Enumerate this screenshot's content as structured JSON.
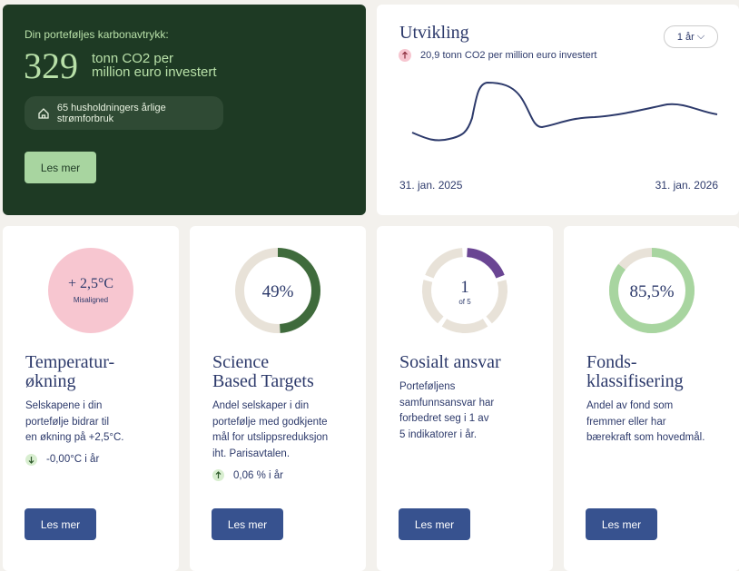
{
  "carbon": {
    "heading": "Din porteføljes karbonavtrykk:",
    "value": 329,
    "unit_lines": [
      "tonn CO2 per",
      "million euro investert"
    ],
    "households": "65 husholdningers årlige strømforbruk",
    "button": "Les mer"
  },
  "trend": {
    "title": "Utvikling",
    "period": "1 år",
    "change": "20,9 tonn CO2 per million euro investert",
    "start_date": "31. jan. 2025",
    "end_date": "31. jan. 2026"
  },
  "cards": [
    {
      "ring": {
        "label": "+ 2,5°C",
        "sub": "Misaligned"
      },
      "title_lines": [
        "Temperatur-",
        "økning"
      ],
      "description_lines": [
        "Selskapene i din",
        "portefølje bidrar til",
        "en økning på +2,5°C."
      ],
      "change": "-0,00°C i år",
      "change_direction": "down",
      "button": "Les mer"
    },
    {
      "ring": {
        "value": 49,
        "label": "49%",
        "color": "#3f6b3c"
      },
      "title_lines": [
        "Science",
        "Based Targets"
      ],
      "description_lines": [
        "Andel selskaper i din",
        "portefølje med godkjente",
        "mål for utslippsreduksjon",
        "iht. Parisavtalen."
      ],
      "change": "0,06 % i år",
      "change_direction": "up",
      "button": "Les mer"
    },
    {
      "ring": {
        "value": 1,
        "total": 5,
        "total_label": "of 5",
        "color": "#6a4593"
      },
      "title_lines": [
        "Sosialt ansvar"
      ],
      "description_lines": [
        "Porteføljens",
        "samfunnsansvar har",
        "forbedret seg i 1 av",
        "5 indikatorer i år."
      ],
      "button": "Les mer"
    },
    {
      "ring": {
        "value": 85.5,
        "label": "85,5%",
        "color": "#a8d5a0"
      },
      "title_lines": [
        "Fonds-",
        "klassifisering"
      ],
      "description_lines": [
        "Andel av fond som",
        "fremmer eller har",
        "bærekraft som hovedmål."
      ],
      "button": "Les mer"
    }
  ]
}
